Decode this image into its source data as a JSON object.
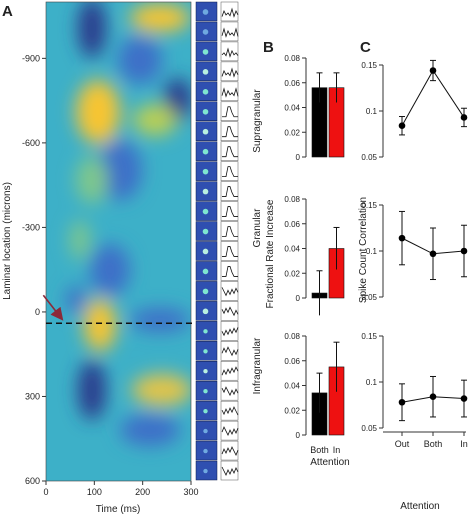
{
  "panel_letters": [
    "A",
    "B",
    "C"
  ],
  "colors": {
    "black_bar": "#000000",
    "red_bar": "#ee1111",
    "heatmap_low": "#2a3a8c",
    "heatmap_mid": "#3db0c8",
    "heatmap_high": "#f7c531",
    "arrow": "#8b2a3a"
  },
  "chart_data": [
    {
      "panel": "A",
      "type": "heatmap",
      "xlabel": "Time (ms)",
      "ylabel": "Laminar location (microns)",
      "xlim": [
        0,
        300
      ],
      "ylim": [
        -1100,
        600
      ],
      "y_inverted": true,
      "xticks": [
        "0",
        "100",
        "200",
        "300"
      ],
      "yticks": [
        "-900",
        "-600",
        "-300",
        "0",
        "300",
        "600"
      ],
      "dashed_line_y": 40,
      "arrow_target": {
        "x": 40,
        "y": 40
      }
    },
    {
      "panel": "B",
      "type": "bar",
      "xlabel": "Attention",
      "ylabel": "Fractional Rate Increase",
      "categories": [
        "Both",
        "In"
      ],
      "subplots": [
        {
          "title": "Supragranular",
          "ylim": [
            0,
            0.08
          ],
          "yticks": [
            "0",
            "0.02",
            "0.04",
            "0.06",
            "0.08"
          ],
          "values": [
            0.056,
            0.056
          ],
          "errors": [
            0.012,
            0.012
          ]
        },
        {
          "title": "Granular",
          "ylim": [
            0,
            0.08
          ],
          "yticks": [
            "0",
            "0.02",
            "0.04",
            "0.06",
            "0.08"
          ],
          "values": [
            0.004,
            0.04
          ],
          "errors": [
            0.018,
            0.017
          ]
        },
        {
          "title": "Infragranular",
          "ylim": [
            0,
            0.08
          ],
          "yticks": [
            "0",
            "0.02",
            "0.04",
            "0.06",
            "0.08"
          ],
          "values": [
            0.034,
            0.055
          ],
          "errors": [
            0.016,
            0.02
          ]
        }
      ]
    },
    {
      "panel": "C",
      "type": "line",
      "xlabel": "Attention",
      "ylabel": "Spike Count Correlation",
      "categories": [
        "Out",
        "Both",
        "In"
      ],
      "subplots": [
        {
          "ylim": [
            0.05,
            0.15
          ],
          "yticks": [
            "0.05",
            "0.1",
            "0.15"
          ],
          "values": [
            0.084,
            0.144,
            0.093
          ],
          "errors": [
            0.01,
            0.011,
            0.01
          ]
        },
        {
          "ylim": [
            0.05,
            0.15
          ],
          "yticks": [
            "0.05",
            "0.1",
            "0.15"
          ],
          "values": [
            0.114,
            0.097,
            0.1
          ],
          "errors": [
            0.029,
            0.028,
            0.028
          ]
        },
        {
          "ylim": [
            0.05,
            0.15
          ],
          "yticks": [
            "0.05",
            "0.1",
            "0.15"
          ],
          "values": [
            0.078,
            0.084,
            0.082
          ],
          "errors": [
            0.02,
            0.022,
            0.02
          ]
        }
      ]
    }
  ]
}
